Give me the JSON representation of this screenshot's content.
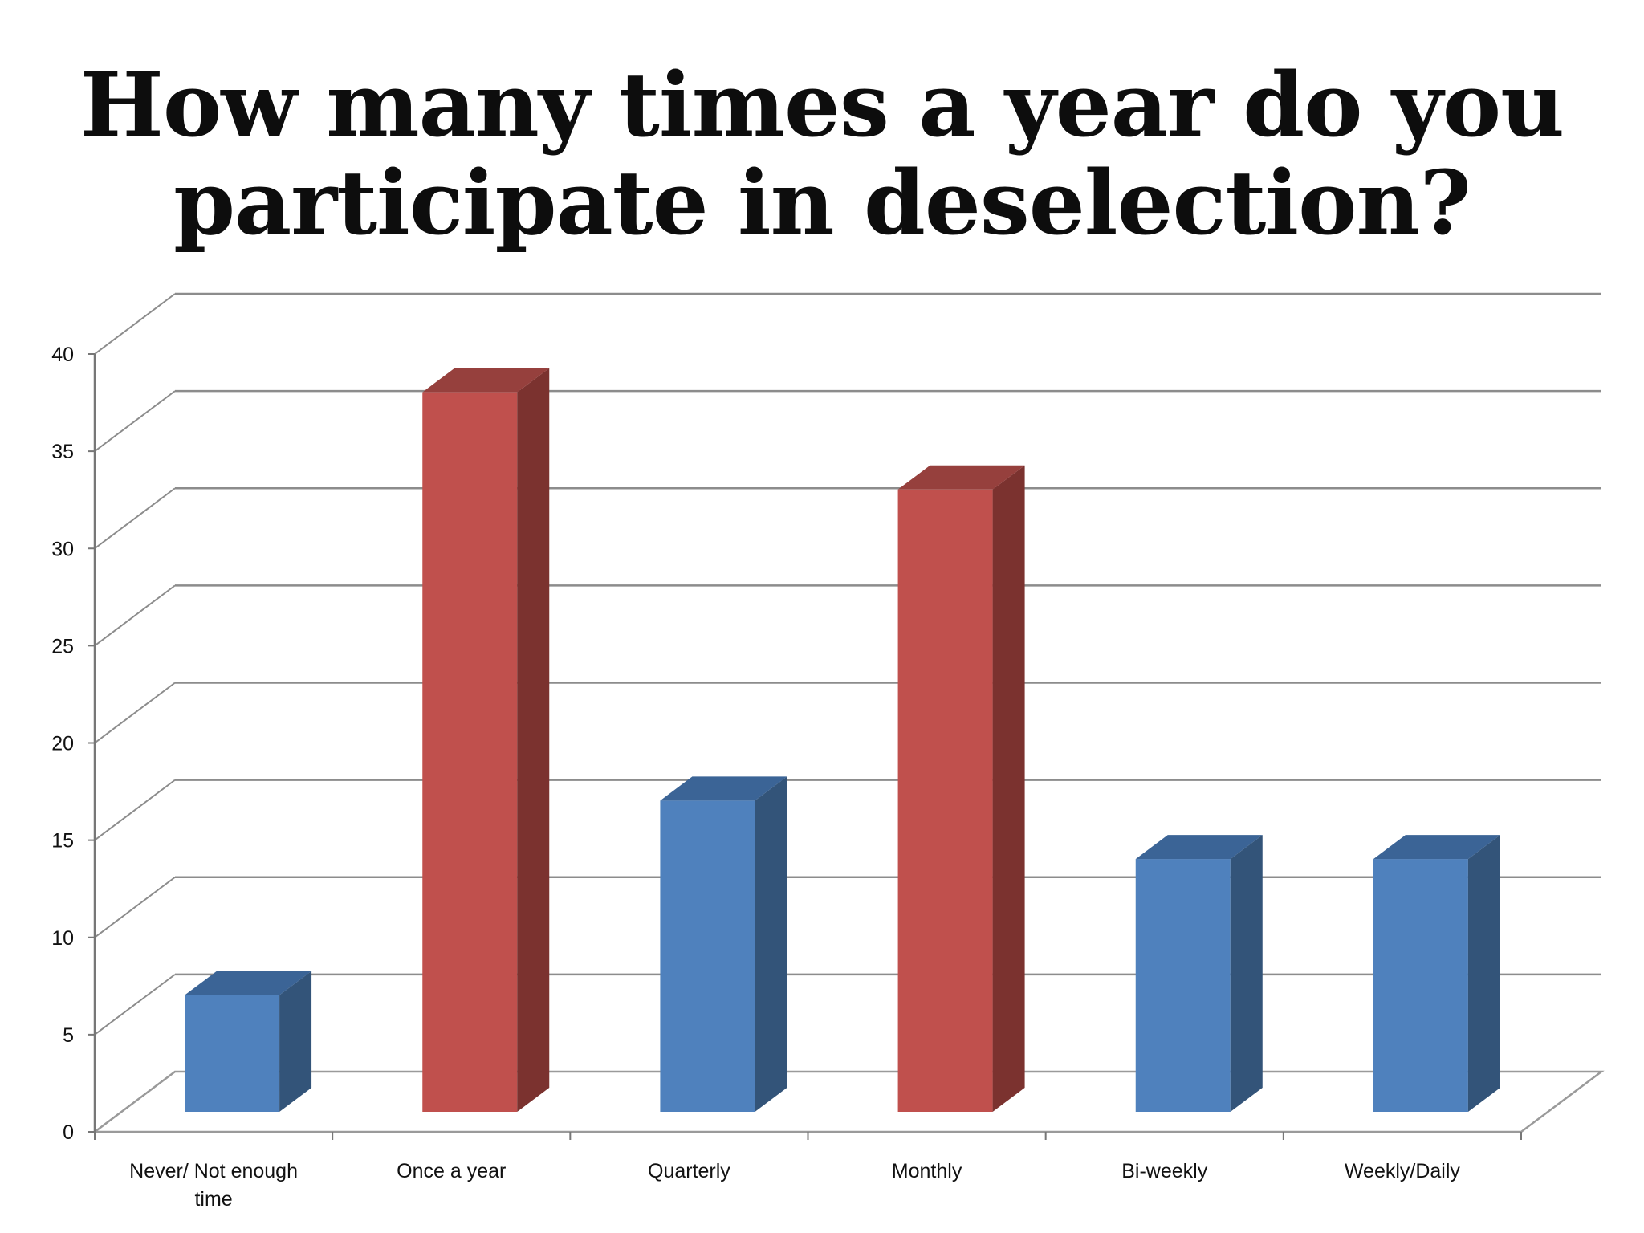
{
  "slide": {
    "title_line1": "How many times a year do you",
    "title_line2": "participate in deselection?"
  },
  "chart_data": {
    "type": "bar",
    "title": "How many times a year do you participate in deselection?",
    "xlabel": "",
    "ylabel": "",
    "ylim": [
      0,
      40
    ],
    "yticks": [
      0,
      5,
      10,
      15,
      20,
      25,
      30,
      35,
      40
    ],
    "grid": true,
    "categories": [
      [
        "Never/ Not enough",
        "time"
      ],
      [
        "Once a year"
      ],
      [
        "Quarterly"
      ],
      [
        "Monthly"
      ],
      [
        "Bi-weekly"
      ],
      [
        "Weekly/Daily"
      ]
    ],
    "values": [
      6,
      37,
      16,
      32,
      13,
      13
    ],
    "bar_colors": [
      "blue",
      "red",
      "blue",
      "red",
      "blue",
      "blue"
    ],
    "colors": {
      "blue": {
        "front": "#4f81bd",
        "side": "#335479",
        "top": "#3b6496"
      },
      "red": {
        "front": "#c0504d",
        "side": "#7b322f",
        "top": "#96403d"
      },
      "grid": "#8c8c8c",
      "floor": "#9a9a9a"
    }
  }
}
